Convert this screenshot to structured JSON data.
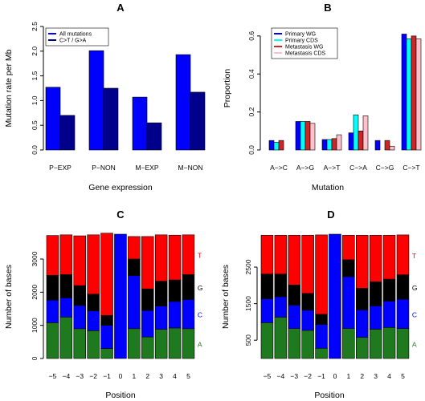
{
  "chart_data": [
    {
      "panel": "A",
      "type": "bar",
      "title": "A",
      "xlabel": "Gene expression",
      "ylabel": "Mutation rate per Mb",
      "categories": [
        "P−EXP",
        "P−NON",
        "M−EXP",
        "M−NON"
      ],
      "series": [
        {
          "name": "All mutations",
          "color": "#0000ff",
          "values": [
            1.27,
            2.01,
            1.07,
            1.93
          ]
        },
        {
          "name": "C>T / G>A",
          "color": "#00008b",
          "values": [
            0.7,
            1.25,
            0.55,
            1.17
          ]
        }
      ],
      "ylim": [
        0,
        2.5
      ],
      "yticks": [
        "0.0",
        "0.5",
        "1.0",
        "1.5",
        "2.0",
        "2.5"
      ],
      "legend_position": "top-left",
      "grid": false
    },
    {
      "panel": "B",
      "type": "bar",
      "title": "B",
      "xlabel": "Mutation",
      "ylabel": "Proportion",
      "categories": [
        "A−>C",
        "A−>G",
        "A−>T",
        "C−>A",
        "C−>G",
        "C−>T"
      ],
      "series": [
        {
          "name": "Primary WG",
          "color": "#0000ff",
          "values": [
            0.05,
            0.15,
            0.055,
            0.09,
            0.05,
            0.61
          ]
        },
        {
          "name": "Primary CDS",
          "color": "#00ffff",
          "values": [
            0.04,
            0.15,
            0.055,
            0.185,
            0.0,
            0.585
          ]
        },
        {
          "name": "Metastasis WG",
          "color": "#cd2626",
          "values": [
            0.05,
            0.15,
            0.06,
            0.1,
            0.05,
            0.6
          ]
        },
        {
          "name": "Metastasis CDS",
          "color": "#ffc0cb",
          "values": [
            0.0,
            0.14,
            0.08,
            0.18,
            0.02,
            0.585
          ]
        }
      ],
      "ylim": [
        0,
        0.65
      ],
      "yticks": [
        "0.0",
        "0.2",
        "0.4",
        "0.6"
      ],
      "legend_position": "top-left",
      "grid": false
    },
    {
      "panel": "C",
      "type": "bar",
      "stacked": true,
      "title": "C",
      "xlabel": "Position",
      "ylabel": "Number of bases",
      "categories": [
        "−5",
        "−4",
        "−3",
        "−2",
        "−1",
        "0",
        "1",
        "2",
        "3",
        "4",
        "5"
      ],
      "series": [
        {
          "name": "A",
          "color": "#1f7a1f",
          "values": [
            1080,
            1250,
            900,
            840,
            300,
            0,
            900,
            650,
            880,
            920,
            900
          ]
        },
        {
          "name": "C",
          "color": "#0000ff",
          "values": [
            680,
            580,
            700,
            600,
            700,
            3750,
            1600,
            800,
            700,
            800,
            880
          ]
        },
        {
          "name": "G",
          "color": "#000000",
          "values": [
            750,
            700,
            600,
            500,
            300,
            0,
            500,
            650,
            750,
            650,
            750
          ]
        },
        {
          "name": "T",
          "color": "#ff0000",
          "values": [
            1200,
            1200,
            1500,
            1790,
            2480,
            0,
            680,
            1580,
            1400,
            1350,
            1200
          ]
        }
      ],
      "ylim": [
        0,
        3750
      ],
      "yticks": [
        "0",
        "1000",
        "2000",
        "3000"
      ],
      "grid": false
    },
    {
      "panel": "D",
      "type": "bar",
      "stacked": true,
      "title": "D",
      "xlabel": "Position",
      "ylabel": "Number of bases",
      "categories": [
        "−5",
        "−4",
        "−3",
        "−2",
        "−1",
        "0",
        "1",
        "2",
        "3",
        "4",
        "5"
      ],
      "series": [
        {
          "name": "A",
          "color": "#1f7a1f",
          "values": [
            980,
            1130,
            820,
            770,
            280,
            0,
            820,
            580,
            800,
            850,
            820
          ]
        },
        {
          "name": "C",
          "color": "#0000ff",
          "values": [
            650,
            560,
            640,
            550,
            650,
            3400,
            1420,
            750,
            640,
            720,
            800
          ]
        },
        {
          "name": "G",
          "color": "#000000",
          "values": [
            680,
            620,
            550,
            460,
            280,
            0,
            460,
            590,
            660,
            600,
            670
          ]
        },
        {
          "name": "T",
          "color": "#ff0000",
          "values": [
            1060,
            1060,
            1360,
            1590,
            2170,
            0,
            670,
            1450,
            1270,
            1200,
            1090
          ]
        }
      ],
      "ylim": [
        0,
        3400
      ],
      "yticks": [
        "500",
        "1500",
        "2500"
      ],
      "grid": false
    }
  ]
}
